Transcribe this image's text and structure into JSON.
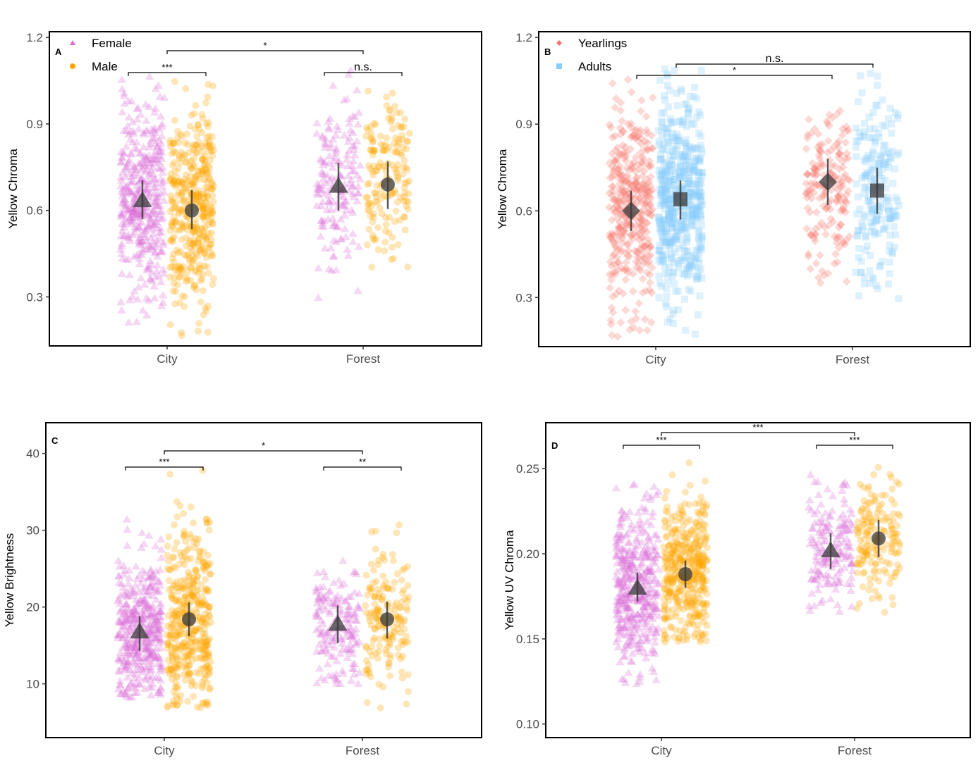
{
  "chart_data": [
    {
      "type": "scatter",
      "panel": "A",
      "title": "",
      "xlabel": "",
      "ylabel": "Yellow Chroma",
      "categories": [
        "City",
        "Forest"
      ],
      "yticks": [
        0.3,
        0.6,
        0.9,
        1.2
      ],
      "ytick_labels": [
        "0.3",
        "0.6",
        "0.9",
        "1.2"
      ],
      "ylim": [
        0.13,
        1.22
      ],
      "legend": {
        "placement": "top-left",
        "entries": [
          {
            "label": "Female",
            "shape": "triangle",
            "color": "#DA70D6"
          },
          {
            "label": "Male",
            "shape": "circle",
            "color": "#FFA500"
          }
        ]
      },
      "series": [
        {
          "name": "Female",
          "shape": "triangle",
          "color": "#DA70D6",
          "mean": [
            0.635,
            0.685
          ],
          "ci_low": [
            0.57,
            0.6
          ],
          "ci_high": [
            0.705,
            0.765
          ],
          "range_low": [
            0.21,
            0.28
          ],
          "range_high": [
            1.07,
            1.1
          ],
          "n_points": [
            420,
            170
          ]
        },
        {
          "name": "Male",
          "shape": "circle",
          "color": "#FFA500",
          "mean": [
            0.6,
            0.69
          ],
          "ci_low": [
            0.535,
            0.605
          ],
          "ci_high": [
            0.67,
            0.77
          ],
          "range_low": [
            0.16,
            0.28
          ],
          "range_high": [
            1.07,
            1.02
          ],
          "n_points": [
            420,
            170
          ]
        }
      ],
      "brackets": [
        {
          "from": "City Female",
          "to": "City Male",
          "label": "***"
        },
        {
          "from": "Forest Female",
          "to": "Forest Male",
          "label": "n.s."
        },
        {
          "from": "City",
          "to": "Forest",
          "label": "*"
        }
      ]
    },
    {
      "type": "scatter",
      "panel": "B",
      "title": "",
      "xlabel": "",
      "ylabel": "Yellow Chroma",
      "categories": [
        "City",
        "Forest"
      ],
      "yticks": [
        0.3,
        0.6,
        0.9,
        1.2
      ],
      "ytick_labels": [
        "0.3",
        "0.6",
        "0.9",
        "1.2"
      ],
      "ylim": [
        0.13,
        1.22
      ],
      "legend": {
        "placement": "top-left",
        "entries": [
          {
            "label": "Yearlings",
            "shape": "diamond",
            "color": "#F8766D"
          },
          {
            "label": "Adults",
            "shape": "square",
            "color": "#87CEFA"
          }
        ]
      },
      "series": [
        {
          "name": "Yearlings",
          "shape": "diamond",
          "color": "#F8766D",
          "mean": [
            0.6,
            0.7
          ],
          "ci_low": [
            0.53,
            0.62
          ],
          "ci_high": [
            0.67,
            0.78
          ],
          "range_low": [
            0.16,
            0.28
          ],
          "range_high": [
            1.06,
            0.97
          ],
          "n_points": [
            380,
            180
          ]
        },
        {
          "name": "Adults",
          "shape": "square",
          "color": "#87CEFA",
          "mean": [
            0.64,
            0.67
          ],
          "ci_low": [
            0.57,
            0.59
          ],
          "ci_high": [
            0.705,
            0.75
          ],
          "range_low": [
            0.17,
            0.2
          ],
          "range_high": [
            1.1,
            1.1
          ],
          "n_points": [
            520,
            200
          ]
        }
      ],
      "brackets": [
        {
          "from": "City Adults",
          "to": "Forest Adults",
          "label": "n.s."
        },
        {
          "from": "City Yearlings",
          "to": "Forest Yearlings",
          "label": "*"
        }
      ]
    },
    {
      "type": "scatter",
      "panel": "C",
      "title": "",
      "xlabel": "",
      "ylabel": "Yellow Brightness",
      "categories": [
        "City",
        "Forest"
      ],
      "yticks": [
        10,
        20,
        30,
        40
      ],
      "ytick_labels": [
        "10",
        "20",
        "30",
        "40"
      ],
      "ylim": [
        3.0,
        44.0
      ],
      "series": [
        {
          "name": "Female",
          "shape": "triangle",
          "color": "#DA70D6",
          "mean": [
            16.8,
            17.8
          ],
          "ci_low": [
            14.3,
            15.3
          ],
          "ci_high": [
            18.8,
            20.2
          ],
          "range_low": [
            8.2,
            9.8
          ],
          "range_high": [
            32.0,
            30.0
          ],
          "n_points": [
            420,
            170
          ]
        },
        {
          "name": "Male",
          "shape": "circle",
          "color": "#FFA500",
          "mean": [
            18.4,
            18.4
          ],
          "ci_low": [
            16.2,
            15.9
          ],
          "ci_high": [
            20.6,
            20.7
          ],
          "range_low": [
            6.9,
            6.5
          ],
          "range_high": [
            37.8,
            31.3
          ],
          "n_points": [
            420,
            170
          ]
        }
      ],
      "brackets": [
        {
          "from": "City Female",
          "to": "City Male",
          "label": "***"
        },
        {
          "from": "Forest Female",
          "to": "Forest Male",
          "label": "**"
        },
        {
          "from": "City",
          "to": "Forest",
          "label": "*"
        }
      ]
    },
    {
      "type": "scatter",
      "panel": "D",
      "title": "",
      "xlabel": "",
      "ylabel": "Yellow UV Chroma",
      "categories": [
        "City",
        "Forest"
      ],
      "yticks": [
        0.1,
        0.15,
        0.2,
        0.25
      ],
      "ytick_labels": [
        "0.10",
        "0.15",
        "0.20",
        "0.25"
      ],
      "ylim": [
        0.092,
        0.277
      ],
      "series": [
        {
          "name": "Female",
          "shape": "triangle",
          "color": "#DA70D6",
          "mean": [
            0.18,
            0.202
          ],
          "ci_low": [
            0.172,
            0.191
          ],
          "ci_high": [
            0.189,
            0.212
          ],
          "range_low": [
            0.12,
            0.165
          ],
          "range_high": [
            0.242,
            0.254
          ],
          "n_points": [
            420,
            170
          ]
        },
        {
          "name": "Male",
          "shape": "circle",
          "color": "#FFA500",
          "mean": [
            0.188,
            0.209
          ],
          "ci_low": [
            0.18,
            0.198
          ],
          "ci_high": [
            0.196,
            0.22
          ],
          "range_low": [
            0.148,
            0.164
          ],
          "range_high": [
            0.257,
            0.252
          ],
          "n_points": [
            420,
            170
          ]
        }
      ],
      "brackets": [
        {
          "from": "City Female",
          "to": "City Male",
          "label": "***"
        },
        {
          "from": "Forest Female",
          "to": "Forest Male",
          "label": "***"
        },
        {
          "from": "City",
          "to": "Forest",
          "label": "***"
        }
      ]
    }
  ]
}
